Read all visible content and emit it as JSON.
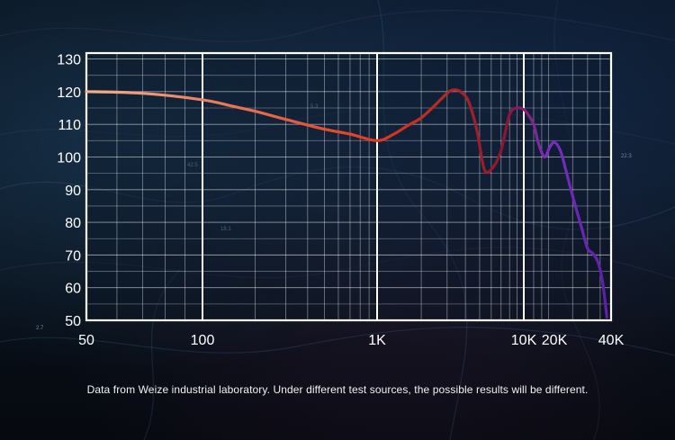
{
  "caption": "Data from Weize industrial laboratory. Under different test sources, the possible results will be different.",
  "chart_data": {
    "type": "line",
    "xscale": "log",
    "xlim": [
      50,
      40000
    ],
    "ylim": [
      50,
      135
    ],
    "yticks": [
      130,
      120,
      110,
      100,
      90,
      80,
      70,
      60,
      50
    ],
    "xticks": [
      {
        "value": 50,
        "label": "50"
      },
      {
        "value": 100,
        "label": "100"
      },
      {
        "value": 1000,
        "label": "1K"
      },
      {
        "value": 10000,
        "label": "10K"
      },
      {
        "value": 20000,
        "label": "20K"
      },
      {
        "value": 40000,
        "label": "40K"
      }
    ],
    "grid": true,
    "series": [
      {
        "x": [
          50,
          70,
          100,
          150,
          200,
          300,
          500,
          700,
          1000,
          1300,
          1600,
          2000,
          2500,
          3000,
          3300,
          3700,
          4200,
          4800,
          5400,
          6200,
          7000,
          8000,
          9000,
          10000,
          11000,
          12500,
          14000,
          16000,
          18000,
          20000,
          21500,
          23000,
          25000,
          28000,
          30000,
          32000,
          34000,
          36000,
          38000
        ],
        "y": [
          120,
          119.5,
          117.5,
          115.5,
          114,
          111.5,
          108.5,
          107,
          105,
          107,
          109.5,
          112,
          116,
          119.5,
          120.5,
          120,
          117,
          108,
          96,
          97,
          102,
          113,
          115,
          114.5,
          113,
          110,
          104,
          100,
          103,
          104.5,
          102,
          96,
          88,
          78,
          72,
          70.5,
          68,
          62,
          51
        ],
        "colors": [
          "#f6b08c",
          "#e03a1e",
          "#8c1630",
          "#7a2ec0",
          "#5b1fa8"
        ]
      }
    ],
    "annotations": [
      "5.3",
      "42.5",
      "18.1",
      "22.3",
      "2.7"
    ]
  }
}
